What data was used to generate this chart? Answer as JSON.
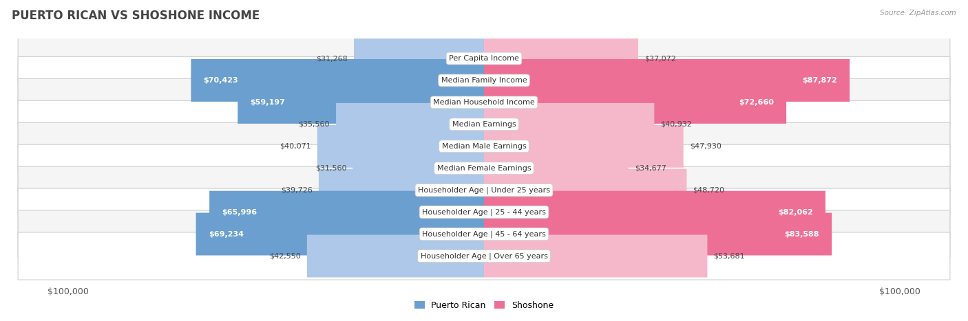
{
  "title": "PUERTO RICAN VS SHOSHONE INCOME",
  "source": "Source: ZipAtlas.com",
  "categories": [
    "Per Capita Income",
    "Median Family Income",
    "Median Household Income",
    "Median Earnings",
    "Median Male Earnings",
    "Median Female Earnings",
    "Householder Age | Under 25 years",
    "Householder Age | 25 - 44 years",
    "Householder Age | 45 - 64 years",
    "Householder Age | Over 65 years"
  ],
  "puerto_rican_values": [
    31268,
    70423,
    59197,
    35560,
    40071,
    31560,
    39726,
    65996,
    69234,
    42550
  ],
  "shoshone_values": [
    37072,
    87872,
    72660,
    40932,
    47930,
    34677,
    48720,
    82062,
    83588,
    53681
  ],
  "puerto_rican_labels": [
    "$31,268",
    "$70,423",
    "$59,197",
    "$35,560",
    "$40,071",
    "$31,560",
    "$39,726",
    "$65,996",
    "$69,234",
    "$42,550"
  ],
  "shoshone_labels": [
    "$37,072",
    "$87,872",
    "$72,660",
    "$40,932",
    "$47,930",
    "$34,677",
    "$48,720",
    "$82,062",
    "$83,588",
    "$53,681"
  ],
  "max_value": 100000,
  "puerto_rican_light_color": "#adc8e8",
  "puerto_rican_strong_color": "#6b9fcf",
  "shoshone_light_color": "#f5b8cb",
  "shoshone_strong_color": "#ee6f96",
  "bg_color": "#ffffff",
  "row_bg_color": "#ffffff",
  "row_alt_color": "#f5f5f5",
  "row_border_color": "#d0d0d0",
  "title_fontsize": 12,
  "label_fontsize": 8,
  "category_fontsize": 8,
  "strong_threshold": 55000,
  "legend_pr_color": "#6b9fcf",
  "legend_sh_color": "#ee6f96"
}
